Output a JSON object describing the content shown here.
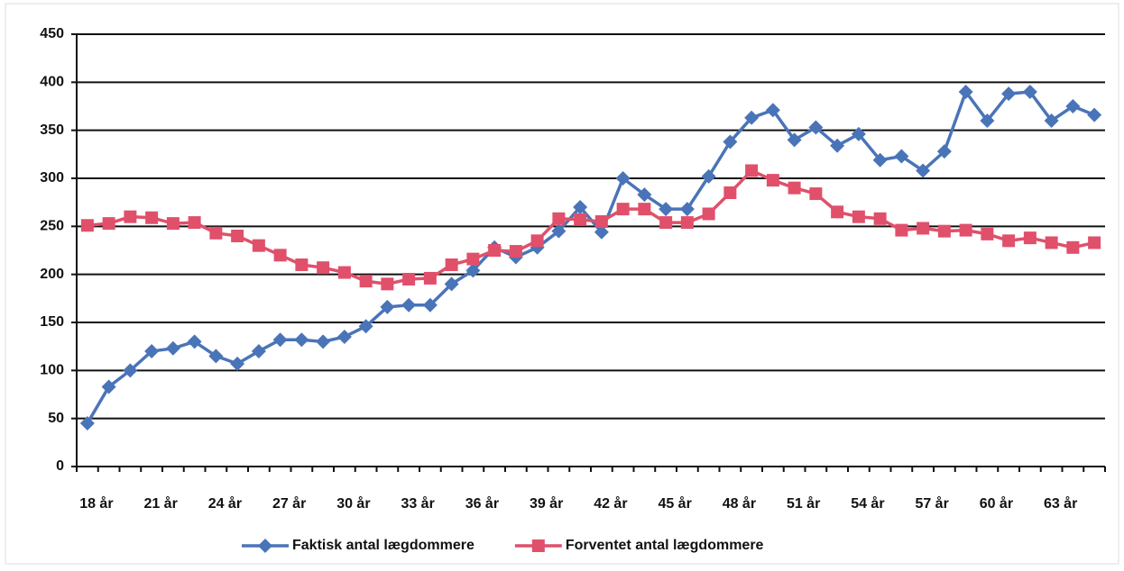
{
  "chart_data": {
    "type": "line",
    "categories": [
      "18 år",
      null,
      null,
      "21 år",
      null,
      null,
      "24 år",
      null,
      null,
      "27 år",
      null,
      null,
      "30 år",
      null,
      null,
      "33 år",
      null,
      null,
      "36 år",
      null,
      null,
      "39 år",
      null,
      null,
      "42 år",
      null,
      null,
      "45 år",
      null,
      null,
      "48 år",
      null,
      null,
      "51 år",
      null,
      null,
      "54 år",
      null,
      null,
      "57 år",
      null,
      null,
      "60 år",
      null,
      null,
      "63 år",
      null,
      null
    ],
    "series": [
      {
        "name": "Faktisk antal lægdommere",
        "color": "#4a74b8",
        "marker": "diamond",
        "values": [
          45,
          83,
          100,
          120,
          123,
          130,
          115,
          107,
          120,
          132,
          132,
          130,
          135,
          146,
          166,
          168,
          168,
          190,
          204,
          228,
          218,
          228,
          245,
          270,
          244,
          300,
          283,
          268,
          268,
          302,
          338,
          363,
          371,
          340,
          353,
          334,
          346,
          319,
          323,
          308,
          328,
          390,
          360,
          388,
          390,
          360,
          375,
          366
        ]
      },
      {
        "name": "Forventet antal lægdommere",
        "color": "#e0506a",
        "marker": "square",
        "values": [
          251,
          253,
          260,
          259,
          253,
          254,
          243,
          240,
          230,
          220,
          210,
          207,
          202,
          193,
          190,
          195,
          196,
          210,
          216,
          225,
          224,
          235,
          258,
          257,
          255,
          268,
          268,
          254,
          254,
          263,
          285,
          308,
          298,
          290,
          284,
          265,
          260,
          258,
          246,
          248,
          245,
          246,
          242,
          235,
          238,
          233,
          228,
          233
        ]
      }
    ],
    "ylim": [
      0,
      450
    ],
    "yticks": [
      0,
      50,
      100,
      150,
      200,
      250,
      300,
      350,
      400,
      450
    ],
    "grid": true,
    "legend": "bottom"
  }
}
